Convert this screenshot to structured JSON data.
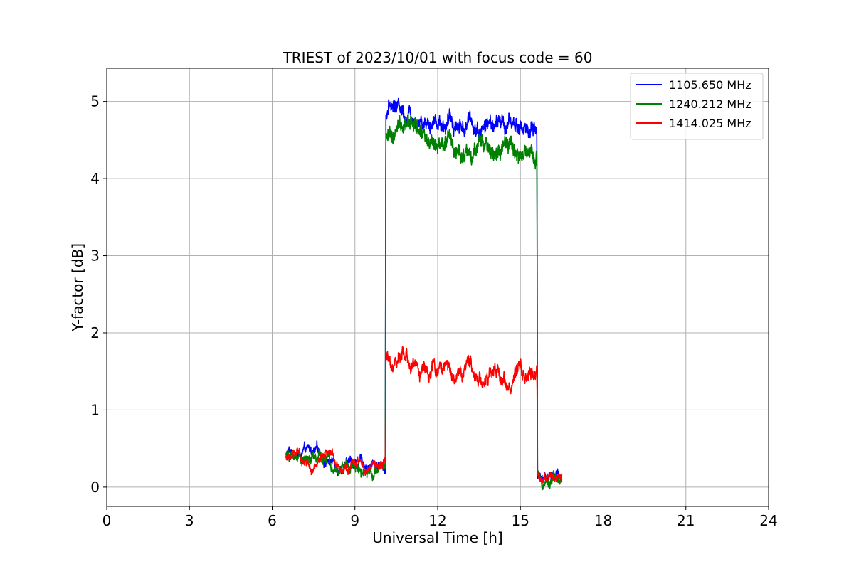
{
  "chart_data": {
    "type": "line",
    "title": "TRIEST of 2023/10/01 with focus code = 60",
    "xlabel": "Universal Time [h]",
    "ylabel": "Y-factor [dB]",
    "xlim": [
      0,
      24
    ],
    "ylim": [
      -0.25,
      5.43
    ],
    "xticks": [
      0,
      3,
      6,
      9,
      12,
      15,
      18,
      21,
      24
    ],
    "yticks": [
      0,
      1,
      2,
      3,
      4,
      5
    ],
    "grid": true,
    "legend_position": "top-right",
    "series": [
      {
        "name": "1105.650 MHz",
        "color": "#0000ff",
        "noise": 0.06,
        "x": [
          6.5,
          6.8,
          7.5,
          8.5,
          9.5,
          10.1,
          10.12,
          10.5,
          11.0,
          11.5,
          12.0,
          12.5,
          13.0,
          13.5,
          14.0,
          14.5,
          15.0,
          15.6,
          15.62,
          16.0,
          16.5
        ],
        "y": [
          0.42,
          0.45,
          0.4,
          0.32,
          0.3,
          0.3,
          4.95,
          4.95,
          4.92,
          4.88,
          4.82,
          4.78,
          4.75,
          4.72,
          4.7,
          4.68,
          4.66,
          4.64,
          0.15,
          0.17,
          0.15
        ]
      },
      {
        "name": "1240.212 MHz",
        "color": "#008000",
        "noise": 0.07,
        "x": [
          6.5,
          6.8,
          7.5,
          8.5,
          9.5,
          10.1,
          10.12,
          10.5,
          11.0,
          11.5,
          12.0,
          12.5,
          13.0,
          13.5,
          14.0,
          14.5,
          15.0,
          15.6,
          15.62,
          16.0,
          16.5
        ],
        "y": [
          0.4,
          0.42,
          0.37,
          0.3,
          0.28,
          0.28,
          4.6,
          4.65,
          4.62,
          4.55,
          4.48,
          4.42,
          4.38,
          4.35,
          4.35,
          4.32,
          4.3,
          4.3,
          0.16,
          0.15,
          0.14
        ]
      },
      {
        "name": "1414.025 MHz",
        "color": "#ff0000",
        "noise": 0.05,
        "x": [
          6.5,
          6.8,
          7.5,
          8.5,
          9.5,
          10.1,
          10.12,
          10.5,
          11.0,
          11.5,
          12.0,
          12.5,
          13.0,
          13.5,
          14.0,
          14.5,
          15.0,
          15.6,
          15.62,
          16.0,
          16.5
        ],
        "y": [
          0.38,
          0.4,
          0.35,
          0.28,
          0.25,
          0.25,
          1.6,
          1.62,
          1.58,
          1.55,
          1.52,
          1.5,
          1.48,
          1.45,
          1.45,
          1.42,
          1.4,
          1.4,
          0.12,
          0.13,
          0.12
        ]
      }
    ]
  }
}
